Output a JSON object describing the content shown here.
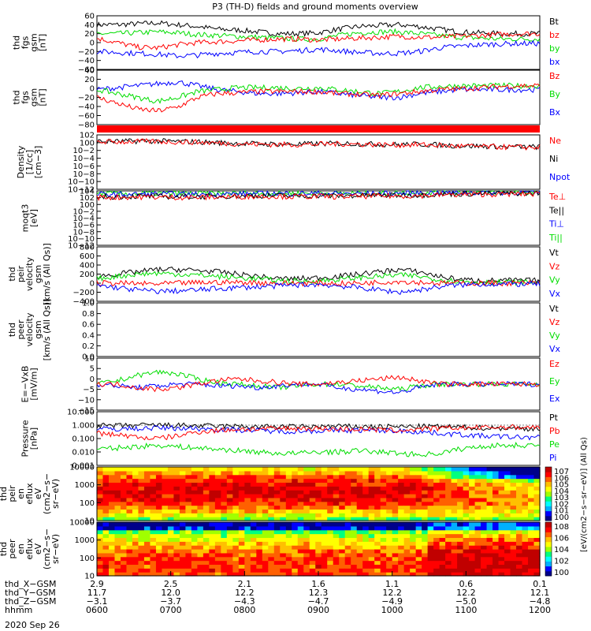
{
  "title": "P3 (TH-D) fields and ground moments overview",
  "colors": {
    "black": "#000000",
    "red": "#ff0000",
    "green": "#00dd00",
    "blue": "#0000ff"
  },
  "panels": [
    {
      "id": "fgs-gsm",
      "ylabel": [
        "thd",
        "fgs",
        "gsm",
        "[nT]"
      ],
      "scale": "linear",
      "ylim": [
        -60,
        60
      ],
      "ticks": [
        "60",
        "40",
        "20",
        "0",
        "−20",
        "−40",
        "−60"
      ],
      "legend": [
        {
          "text": "Bt",
          "color": "black"
        },
        {
          "text": "bz",
          "color": "red"
        },
        {
          "text": "by",
          "color": "green"
        },
        {
          "text": "bx",
          "color": "blue"
        }
      ],
      "series": [
        {
          "color": "black",
          "y": [
            40,
            40,
            42,
            44,
            40,
            36,
            30,
            28,
            24,
            20,
            20,
            22,
            30,
            36,
            38,
            40,
            36,
            30,
            24,
            22,
            20,
            20,
            20
          ]
        },
        {
          "color": "green",
          "y": [
            20,
            20,
            22,
            24,
            22,
            18,
            16,
            14,
            12,
            10,
            8,
            8,
            16,
            22,
            24,
            24,
            20,
            16,
            12,
            10,
            8,
            8,
            8
          ]
        },
        {
          "color": "red",
          "y": [
            10,
            0,
            -10,
            -12,
            -5,
            0,
            2,
            4,
            6,
            8,
            8,
            6,
            8,
            10,
            12,
            14,
            12,
            12,
            14,
            16,
            18,
            20,
            20
          ]
        },
        {
          "color": "blue",
          "y": [
            -20,
            -22,
            -24,
            -26,
            -30,
            -28,
            -24,
            -22,
            -20,
            -20,
            -18,
            -15,
            -18,
            -22,
            -24,
            -24,
            -20,
            -12,
            -8,
            -5,
            -3,
            -2,
            -2
          ]
        }
      ]
    },
    {
      "id": "fgm-gsm",
      "ylabel": [
        "thd",
        "fgs",
        "gsm",
        "[nT]"
      ],
      "scale": "linear",
      "ylim": [
        -90,
        50
      ],
      "ticks": [
        "40",
        "20",
        "0",
        "−20",
        "−40",
        "−60",
        "−80"
      ],
      "legend": [
        {
          "text": "Bz",
          "color": "red"
        },
        {
          "text": "By",
          "color": "green"
        },
        {
          "text": "Bx",
          "color": "blue"
        }
      ],
      "series": [
        {
          "color": "blue",
          "y": [
            0,
            5,
            10,
            15,
            20,
            10,
            0,
            -5,
            -10,
            -10,
            -8,
            -5,
            -10,
            -15,
            -20,
            -20,
            -10,
            -5,
            0,
            0,
            0,
            0,
            0
          ]
        },
        {
          "color": "green",
          "y": [
            0,
            -10,
            -20,
            -30,
            -20,
            -5,
            0,
            5,
            5,
            5,
            3,
            5,
            0,
            -5,
            -10,
            -5,
            5,
            8,
            10,
            10,
            10,
            10,
            10
          ]
        },
        {
          "color": "red",
          "y": [
            -20,
            -35,
            -50,
            -55,
            -45,
            -20,
            -10,
            -8,
            -5,
            -5,
            -5,
            -5,
            -10,
            -12,
            -15,
            -10,
            -5,
            0,
            2,
            5,
            8,
            10,
            10
          ]
        }
      ]
    },
    {
      "id": "density",
      "ylabel": [
        "Density",
        "[1/cc]",
        "[cm−3]"
      ],
      "scale": "log",
      "ylim": [
        -12,
        2
      ],
      "ticks": [
        "102",
        "100",
        "10−2",
        "10−4",
        "10−6",
        "10−8",
        "10−10",
        "10−12"
      ],
      "legend": [
        {
          "text": "Ne",
          "color": "red"
        },
        {
          "text": "Ni",
          "color": "black"
        },
        {
          "text": "Npot",
          "color": "blue"
        }
      ],
      "series": [
        {
          "color": "black",
          "y": [
            0.3,
            0.3,
            0.4,
            0.4,
            0.3,
            0.2,
            0,
            -0.2,
            -0.3,
            -0.4,
            -0.4,
            -0.3,
            -0.2,
            -0.3,
            -0.4,
            -0.5,
            -0.4,
            -0.6,
            -0.8,
            -0.9,
            -1,
            -1.1,
            -1.1
          ]
        },
        {
          "color": "red",
          "y": [
            0.2,
            0.2,
            0.3,
            0.3,
            0.2,
            0.1,
            -0.1,
            -0.3,
            -0.4,
            -0.5,
            -0.5,
            -0.4,
            -0.3,
            -0.4,
            -0.5,
            -0.6,
            -0.5,
            -0.7,
            -0.9,
            -1,
            -1.1,
            -1.2,
            -1.2
          ]
        }
      ]
    },
    {
      "id": "moments",
      "ylabel": [
        "moqt3",
        "[eV]"
      ],
      "scale": "log",
      "ylim": [
        -12,
        4
      ],
      "ticks": [
        "104",
        "102",
        "100",
        "10−2",
        "10−4",
        "10−6",
        "10−8",
        "10−10",
        "10−12"
      ],
      "legend": [
        {
          "text": "Te⊥",
          "color": "red"
        },
        {
          "text": "Te||",
          "color": "black"
        },
        {
          "text": "Ti⊥",
          "color": "blue"
        },
        {
          "text": "Ti||",
          "color": "green"
        }
      ],
      "series": [
        {
          "color": "green",
          "y": [
            3.2,
            3.2,
            3.2,
            3.3,
            3.2,
            3.2,
            3.2,
            3.3,
            3.3,
            3.3,
            3.3,
            3.4,
            3.3,
            3.3,
            3.3,
            3.4,
            3.5,
            3.6,
            3.6,
            3.6,
            3.6,
            3.6,
            3.6
          ]
        },
        {
          "color": "blue",
          "y": [
            3,
            3,
            3,
            3.1,
            3,
            3,
            3.1,
            3.1,
            3.2,
            3.2,
            3.2,
            3.3,
            3.2,
            3.2,
            3.2,
            3.3,
            3.4,
            3.5,
            3.5,
            3.5,
            3.5,
            3.5,
            3.5
          ]
        },
        {
          "color": "black",
          "y": [
            2.3,
            2.3,
            2.4,
            2.4,
            2.3,
            2.3,
            2.4,
            2.5,
            2.6,
            2.6,
            2.5,
            2.6,
            2.5,
            2.6,
            2.7,
            2.7,
            2.8,
            3,
            3.1,
            3.2,
            3.2,
            3.3,
            3.3
          ]
        },
        {
          "color": "red",
          "y": [
            2.1,
            2.1,
            2.2,
            2.2,
            2.1,
            2.1,
            2.2,
            2.3,
            2.4,
            2.4,
            2.3,
            2.4,
            2.3,
            2.4,
            2.5,
            2.5,
            2.6,
            2.8,
            2.9,
            3,
            3,
            3.1,
            3.1
          ]
        }
      ]
    },
    {
      "id": "peir-velocity",
      "ylabel": [
        "thd",
        "peir",
        "velocity",
        "gsm",
        "[km/s (All Qs)]"
      ],
      "scale": "linear",
      "ylim": [
        -400,
        800
      ],
      "ticks": [
        "800",
        "600",
        "400",
        "200",
        "0",
        "−200",
        "−400"
      ],
      "legend": [
        {
          "text": "Vt",
          "color": "black"
        },
        {
          "text": "Vz",
          "color": "red"
        },
        {
          "text": "Vy",
          "color": "green"
        },
        {
          "text": "Vx",
          "color": "blue"
        }
      ],
      "series": [
        {
          "color": "black",
          "y": [
            150,
            200,
            250,
            300,
            300,
            280,
            250,
            200,
            150,
            100,
            100,
            120,
            150,
            200,
            250,
            300,
            250,
            150,
            80,
            60,
            60,
            60,
            60
          ]
        },
        {
          "color": "green",
          "y": [
            100,
            150,
            200,
            220,
            200,
            180,
            150,
            120,
            100,
            60,
            40,
            50,
            80,
            120,
            150,
            180,
            150,
            80,
            40,
            20,
            20,
            20,
            20
          ]
        },
        {
          "color": "red",
          "y": [
            0,
            0,
            -10,
            -20,
            0,
            10,
            20,
            20,
            10,
            0,
            0,
            0,
            -10,
            0,
            20,
            40,
            20,
            0,
            0,
            0,
            0,
            0,
            0
          ]
        },
        {
          "color": "blue",
          "y": [
            -50,
            -100,
            -150,
            -180,
            -170,
            -150,
            -120,
            -100,
            -80,
            -60,
            -40,
            -30,
            -60,
            -100,
            -150,
            -200,
            -150,
            -80,
            -40,
            -20,
            -20,
            -20,
            -20
          ]
        }
      ]
    },
    {
      "id": "peer-velocity",
      "ylabel": [
        "thd",
        "peer",
        "velocity",
        "gsm",
        "[km/s (All Qs)]"
      ],
      "scale": "linear",
      "ylim": [
        0,
        1
      ],
      "ticks": [
        "1.0",
        "0.8",
        "0.6",
        "0.4",
        "0.2",
        "0.0"
      ],
      "legend": [
        {
          "text": "Vt",
          "color": "black"
        },
        {
          "text": "Vz",
          "color": "red"
        },
        {
          "text": "Vy",
          "color": "green"
        },
        {
          "text": "Vx",
          "color": "blue"
        }
      ],
      "series": []
    },
    {
      "id": "efield",
      "ylabel": [
        "E=−VxB",
        "[mV/m]"
      ],
      "scale": "linear",
      "ylim": [
        -15,
        15
      ],
      "ticks": [
        "10",
        "5",
        "0",
        "−5",
        "−10",
        "−15"
      ],
      "legend": [
        {
          "text": "Ez",
          "color": "red"
        },
        {
          "text": "Ey",
          "color": "green"
        },
        {
          "text": "Ex",
          "color": "blue"
        }
      ],
      "series": [
        {
          "color": "green",
          "y": [
            0,
            2,
            5,
            7,
            6,
            3,
            1,
            0,
            -1,
            -2,
            -1,
            0,
            0,
            -1,
            -2,
            -3,
            -1,
            0,
            0,
            0,
            0,
            0,
            0
          ]
        },
        {
          "color": "blue",
          "y": [
            0,
            -1,
            -2,
            -1,
            0,
            0,
            -1,
            -1,
            -2,
            -1,
            0,
            0,
            -2,
            -3,
            -4,
            -5,
            -2,
            0,
            0,
            0,
            0,
            0,
            0
          ]
        },
        {
          "color": "red",
          "y": [
            0,
            0,
            -2,
            -3,
            -2,
            0,
            2,
            3,
            2,
            1,
            0,
            0,
            1,
            2,
            3,
            4,
            2,
            0,
            0,
            0,
            0,
            0,
            0
          ]
        }
      ]
    },
    {
      "id": "pressure",
      "ylabel": [
        "Pressure",
        "[nPa]"
      ],
      "scale": "log",
      "ylim": [
        -3,
        1
      ],
      "ticks": [
        "10.000",
        "1.000",
        "0.100",
        "0.010",
        "0.001"
      ],
      "legend": [
        {
          "text": "Pt",
          "color": "black"
        },
        {
          "text": "Pb",
          "color": "red"
        },
        {
          "text": "Pe",
          "color": "green"
        },
        {
          "text": "Pi",
          "color": "blue"
        }
      ],
      "series": [
        {
          "color": "black",
          "y": [
            -0.05,
            -0.05,
            -0.02,
            0,
            -0.02,
            -0.05,
            -0.08,
            -0.1,
            -0.12,
            -0.12,
            -0.12,
            -0.1,
            -0.1,
            -0.1,
            -0.12,
            -0.12,
            -0.1,
            -0.12,
            -0.15,
            -0.2,
            -0.22,
            -0.25,
            -0.25
          ]
        },
        {
          "color": "blue",
          "y": [
            -0.3,
            -0.28,
            -0.25,
            -0.2,
            -0.22,
            -0.25,
            -0.3,
            -0.35,
            -0.4,
            -0.45,
            -0.45,
            -0.42,
            -0.4,
            -0.38,
            -0.4,
            -0.42,
            -0.5,
            -0.6,
            -0.7,
            -0.8,
            -0.85,
            -0.9,
            -0.9
          ]
        },
        {
          "color": "red",
          "y": [
            -0.6,
            -0.7,
            -0.9,
            -1,
            -0.8,
            -0.5,
            -0.4,
            -0.3,
            -0.3,
            -0.25,
            -0.25,
            -0.25,
            -0.3,
            -0.3,
            -0.35,
            -0.4,
            -0.3,
            -0.25,
            -0.2,
            -0.18,
            -0.15,
            -0.15,
            -0.15
          ]
        },
        {
          "color": "green",
          "y": [
            -1.8,
            -1.7,
            -1.6,
            -1.5,
            -1.6,
            -1.7,
            -1.8,
            -1.9,
            -2,
            -2.1,
            -2.1,
            -2,
            -2,
            -1.9,
            -2,
            -2.1,
            -2.2,
            -2.1,
            -1.8,
            -1.6,
            -1.5,
            -1.5,
            -1.5
          ]
        }
      ]
    },
    {
      "id": "peir-eflux",
      "ylabel": [
        "thd",
        "peir",
        "en",
        "eflux",
        "eV",
        "(cm2−s−",
        "sr−eV)"
      ],
      "scale": "log",
      "ylim": [
        1,
        4.2
      ],
      "ticks": [
        "10000",
        "1000",
        "100",
        "10"
      ],
      "legend": [],
      "series": []
    },
    {
      "id": "peer-eflux",
      "ylabel": [
        "thd",
        "peer",
        "en",
        "eflux",
        "eV",
        "(cm2−s−",
        "sr−eV)"
      ],
      "scale": "log",
      "ylim": [
        1,
        4.2
      ],
      "ticks": [
        "10000",
        "1000",
        "100",
        "10"
      ],
      "legend": [],
      "series": []
    }
  ],
  "colorbar": [
    {
      "ticks": [
        "107",
        "106",
        "105",
        "104",
        "103",
        "102",
        "101",
        "100"
      ]
    },
    {
      "ticks": [
        "108",
        "106",
        "104",
        "102",
        "100"
      ]
    }
  ],
  "colorbar_label": "[eV/(cm2−s−sr−eV)] (All Qs)",
  "xaxis": {
    "rows": [
      {
        "label": "thd_X−GSM",
        "values": [
          "2.9",
          "2.5",
          "2.1",
          "1.6",
          "1.1",
          "0.6",
          "0.1"
        ]
      },
      {
        "label": "thd_Y−GSM",
        "values": [
          "11.7",
          "12.0",
          "12.2",
          "12.3",
          "12.2",
          "12.2",
          "12.1"
        ]
      },
      {
        "label": "thd_Z−GSM",
        "values": [
          "−3.1",
          "−3.7",
          "−4.3",
          "−4.7",
          "−4.9",
          "−5.0",
          "−4.8"
        ]
      },
      {
        "label": "hhmm",
        "values": [
          "0600",
          "0700",
          "0800",
          "0900",
          "1000",
          "1100",
          "1200"
        ]
      }
    ],
    "date": "2020 Sep 26"
  }
}
